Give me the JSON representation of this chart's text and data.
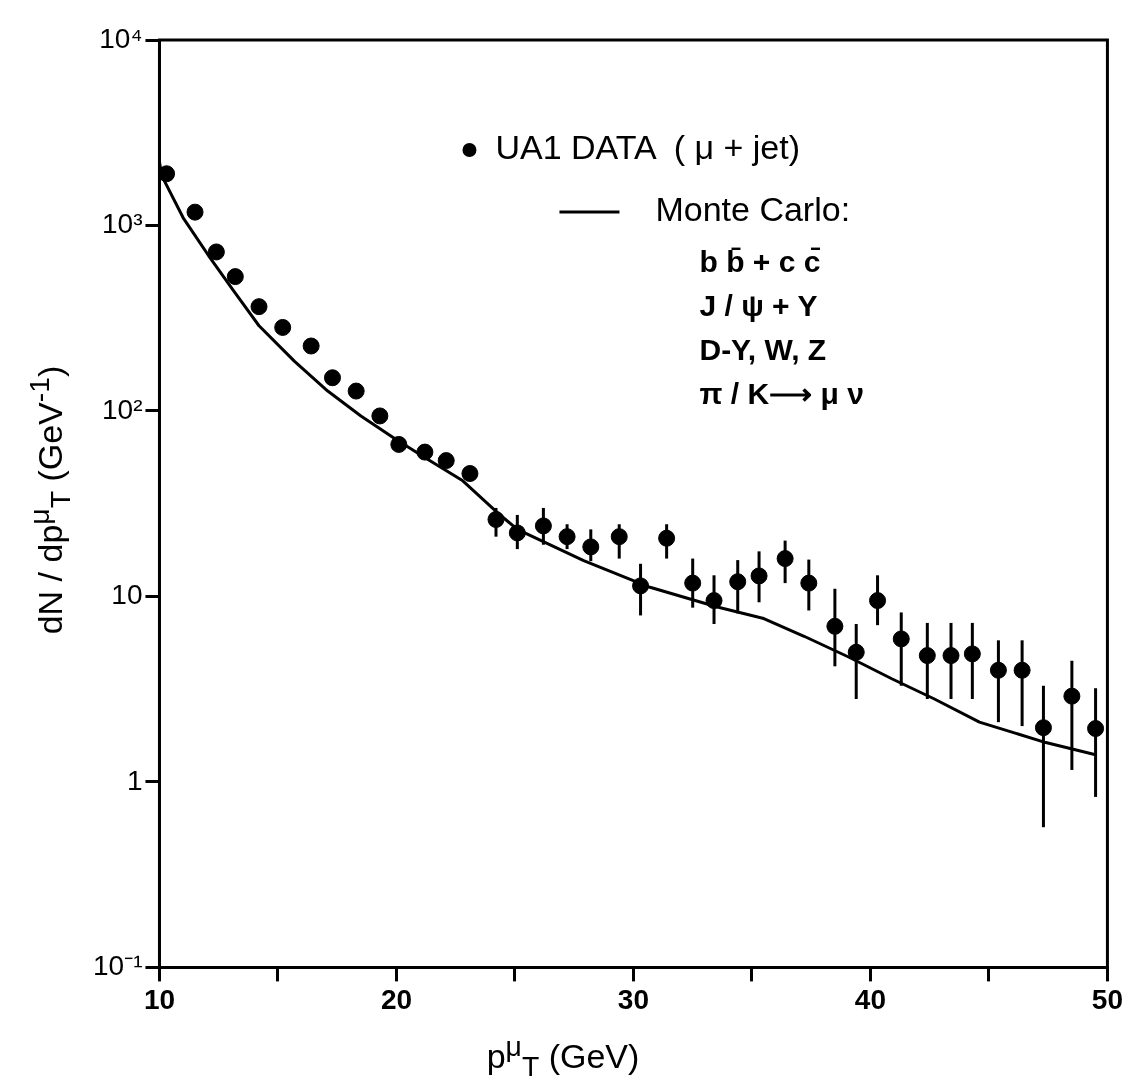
{
  "chart_data": {
    "type": "scatter",
    "xlabel": "p$^{μ}$$_{T}$   (GeV)",
    "ylabel": "dN / dp$^{μ}$$_{T}$   (GeV$^{-1}$)",
    "xlim": [
      10,
      50
    ],
    "ylim": [
      0.1,
      10000
    ],
    "log": "y",
    "grid": false,
    "legend": "top right",
    "xticks": [
      10,
      {
        "value": 15,
        "label": null
      },
      20,
      {
        "value": 25,
        "label": null
      },
      30,
      {
        "value": 35,
        "label": null
      },
      40,
      {
        "value": 45,
        "label": null
      },
      50
    ],
    "yticks": [
      {
        "value": 0.1,
        "label": "10⁻¹"
      },
      1,
      10,
      {
        "value": 100,
        "label": "10²"
      },
      {
        "value": 1000,
        "label": "10³"
      },
      {
        "value": 10000,
        "label": "10⁴"
      }
    ],
    "annotations": [
      "b b̄ + c c̄",
      "J / ψ + Υ",
      "D-Y, W, Z",
      "π / K⟶ μ ν"
    ],
    "series": [
      {
        "name": "UA1 DATA  ( μ + jet)",
        "marker": "circle",
        "color": "#000000",
        "x": [
          10.3,
          11.5,
          12.4,
          13.2,
          14.2,
          15.2,
          16.4,
          17.3,
          18.3,
          19.3,
          20.1,
          21.2,
          22.1,
          23.1,
          24.2,
          25.1,
          26.2,
          27.2,
          28.2,
          29.4,
          30.3,
          31.4,
          32.5,
          33.4,
          34.4,
          35.3,
          36.4,
          37.4,
          38.5,
          39.4,
          40.3,
          41.3,
          42.4,
          43.4,
          44.3,
          45.4,
          46.4,
          47.3,
          48.5,
          49.5
        ],
        "values": [
          1900,
          1180,
          720,
          530,
          365,
          282,
          224,
          151,
          128,
          94,
          66,
          60,
          54,
          46,
          26,
          22,
          24,
          21,
          18.5,
          21,
          11.4,
          20.6,
          11.8,
          9.5,
          12,
          12.9,
          16,
          11.8,
          6.9,
          5,
          9.5,
          5.9,
          4.8,
          4.8,
          4.9,
          4,
          4,
          1.96,
          2.9,
          1.94
        ],
        "errors": [
          null,
          null,
          null,
          null,
          null,
          null,
          null,
          null,
          null,
          null,
          null,
          null,
          null,
          null,
          [
            21,
            30
          ],
          [
            18,
            27.5
          ],
          [
            19,
            30
          ],
          [
            18,
            24.5
          ],
          [
            15.5,
            23
          ],
          [
            16,
            24.5
          ],
          [
            7.9,
            15
          ],
          [
            16,
            24.5
          ],
          [
            8.7,
            16
          ],
          [
            7.1,
            13
          ],
          [
            8.1,
            15.7
          ],
          [
            9.3,
            17.5
          ],
          [
            11.8,
            20
          ],
          [
            8.4,
            15.8
          ],
          [
            4.2,
            11
          ],
          [
            2.8,
            7.1
          ],
          [
            7,
            13
          ],
          [
            3.3,
            8.2
          ],
          [
            2.8,
            7.2
          ],
          [
            2.8,
            7.2
          ],
          [
            2.8,
            7.2
          ],
          [
            2.1,
            5.8
          ],
          [
            2,
            5.8
          ],
          [
            0.57,
            3.3
          ],
          [
            1.16,
            4.5
          ],
          [
            0.83,
            3.2
          ]
        ]
      },
      {
        "name": "Monte Carlo:",
        "type": "line",
        "marker": "none",
        "line_style": "solid",
        "color": "#000000",
        "x": [
          10,
          10.1,
          11,
          12.1,
          13.1,
          14.2,
          15.7,
          17.1,
          18.5,
          20,
          21.4,
          22.8,
          24.3,
          25.1,
          27.9,
          30.7,
          33.5,
          35.5,
          37.2,
          39.1,
          40.9,
          42.7,
          44.6,
          47.4,
          49.5
        ],
        "values": [
          2200,
          1850,
          1100,
          680,
          450,
          288,
          185,
          128,
          94,
          70,
          54,
          42,
          28,
          23,
          15.6,
          11.2,
          8.8,
          7.6,
          6.1,
          4.7,
          3.6,
          2.8,
          2.1,
          1.63,
          1.4
        ]
      }
    ]
  }
}
